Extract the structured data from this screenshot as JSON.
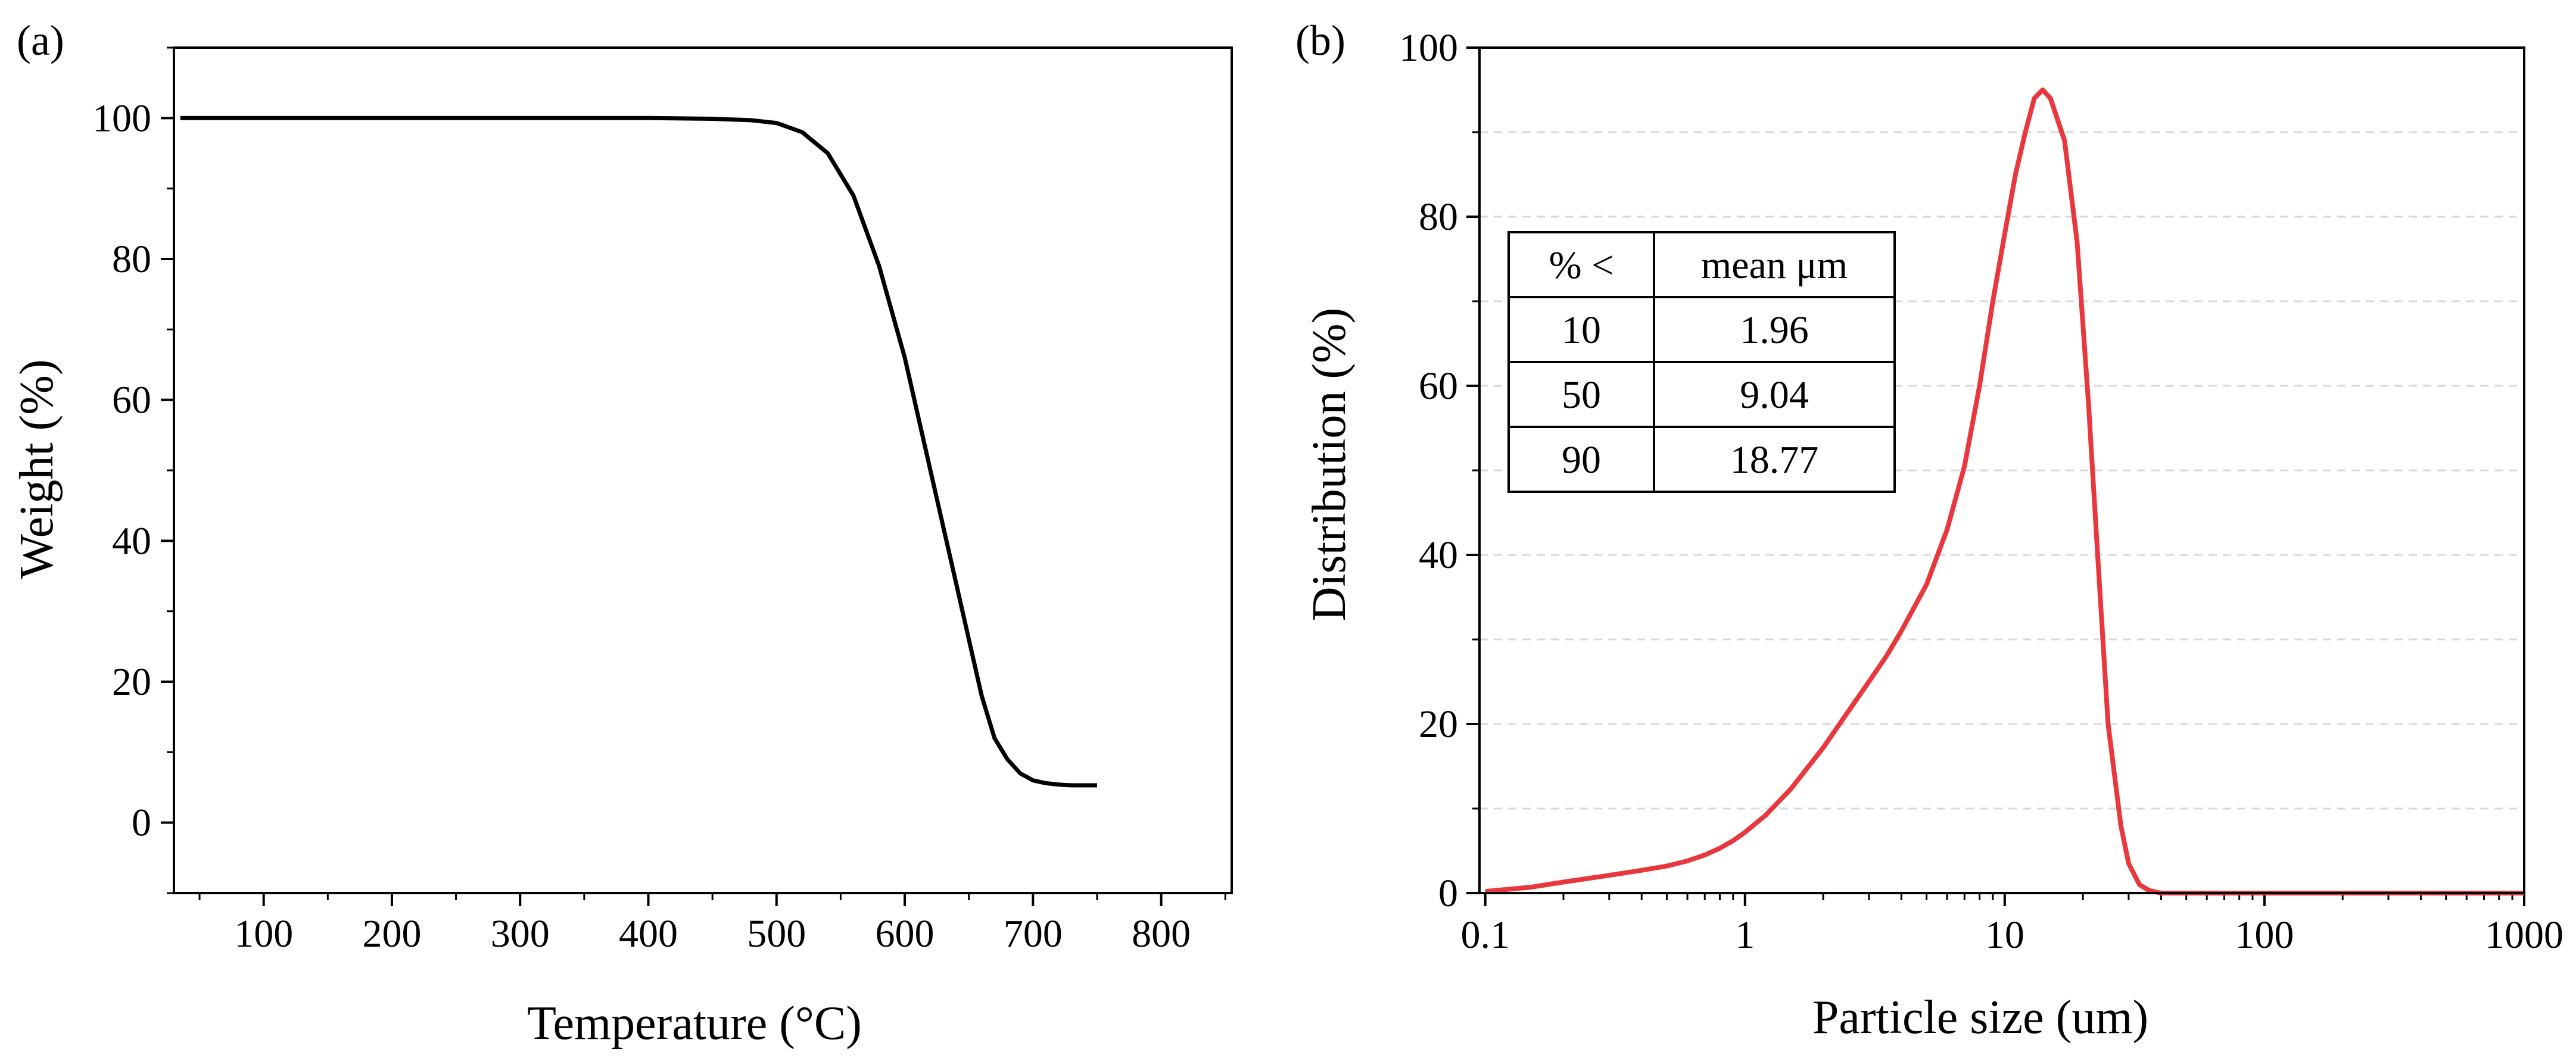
{
  "chart_data": [
    {
      "type": "line",
      "panel_label": "(a)",
      "xlabel": "Temperature (°C)",
      "ylabel": "Weight (%)",
      "xlim": [
        30,
        855
      ],
      "ylim": [
        -10,
        110
      ],
      "x_ticks": [
        100,
        200,
        300,
        400,
        500,
        600,
        700,
        800
      ],
      "y_ticks": [
        0,
        20,
        40,
        60,
        80,
        100
      ],
      "grid": false,
      "color": "#000000",
      "series": [
        {
          "x": [
            35,
            100,
            200,
            300,
            400,
            450,
            480,
            500,
            520,
            540,
            560,
            580,
            600,
            620,
            640,
            660,
            670,
            680,
            690,
            700,
            710,
            720,
            730,
            740,
            750
          ],
          "y": [
            100,
            100,
            100,
            100,
            100,
            99.9,
            99.7,
            99.3,
            98,
            95,
            89,
            79,
            66,
            50,
            34,
            18,
            12,
            9,
            7,
            6,
            5.6,
            5.4,
            5.3,
            5.3,
            5.3
          ]
        }
      ]
    },
    {
      "type": "line",
      "panel_label": "(b)",
      "xlabel": "Particle size (um)",
      "ylabel": "Distribution (%)",
      "xscale": "log",
      "xlim": [
        0.095,
        1000
      ],
      "ylim": [
        0,
        100
      ],
      "x_ticks": [
        0.1,
        1,
        10,
        100,
        1000
      ],
      "x_tick_labels": [
        "0.1",
        "1",
        "10",
        "100",
        "1000"
      ],
      "y_ticks": [
        0,
        20,
        40,
        60,
        80,
        100
      ],
      "grid": "dashed horizontal",
      "color": "#e8383d",
      "series": [
        {
          "x": [
            0.1,
            0.15,
            0.2,
            0.3,
            0.4,
            0.5,
            0.6,
            0.7,
            0.8,
            0.9,
            1,
            1.2,
            1.5,
            2,
            2.5,
            3,
            3.5,
            4,
            5,
            6,
            7,
            8,
            9,
            10,
            11,
            12,
            13,
            14,
            15,
            17,
            19,
            21,
            23,
            25,
            28,
            30,
            33,
            36,
            40,
            50,
            100,
            1000
          ],
          "y": [
            0.2,
            0.7,
            1.3,
            2.1,
            2.7,
            3.2,
            3.8,
            4.5,
            5.3,
            6.2,
            7.2,
            9.2,
            12.3,
            17.2,
            21.5,
            25,
            28,
            31,
            36.5,
            43,
            50.5,
            60,
            70,
            78,
            85,
            90,
            94,
            95,
            94,
            89,
            77,
            58,
            38,
            20,
            8,
            3.5,
            1,
            0.3,
            0,
            0,
            0,
            0
          ]
        }
      ],
      "table": {
        "headers": [
          "% <",
          "mean μm"
        ],
        "rows": [
          [
            "10",
            "1.96"
          ],
          [
            "50",
            "9.04"
          ],
          [
            "90",
            "18.77"
          ]
        ]
      }
    }
  ]
}
